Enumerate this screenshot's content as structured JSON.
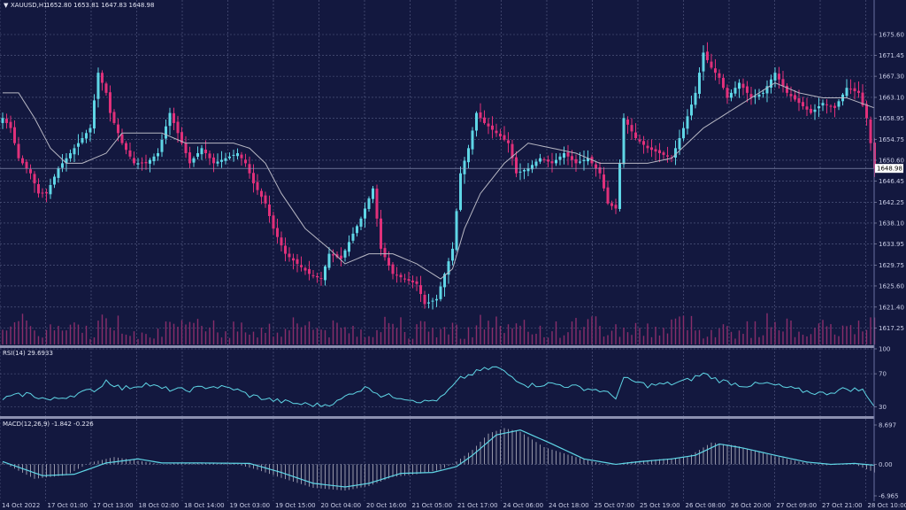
{
  "header": {
    "symbol": "XAUUSD,H1",
    "ohlc": "1652.80 1653.81 1647.83 1648.98"
  },
  "price_tag": "1648.98",
  "rsi_header": "RSI(14) 29.6933",
  "macd_header": "MACD(12,26,9) -1.842 -0.226",
  "colors": {
    "background": "#13183f",
    "bull": "#5fd6e6",
    "bear": "#e0307a",
    "ma": "#b8b8c4",
    "volume": "#8a2e6b",
    "grid": "#5a6088",
    "rsi_line": "#5fd6e6",
    "macd_line": "#5fd6e6",
    "macd_hist": "#b8b8c4"
  },
  "chart_data": [
    {
      "type": "candlestick",
      "name": "price",
      "ylim": [
        1614.5,
        1680.0
      ],
      "y_ticks": [
        "1675.60",
        "1671.45",
        "1667.30",
        "1663.10",
        "1658.95",
        "1654.75",
        "1650.60",
        "1646.45",
        "1642.25",
        "1638.10",
        "1633.95",
        "1629.75",
        "1625.60",
        "1621.40",
        "1617.25"
      ],
      "x_ticks": [
        "14 Oct 2022",
        "17 Oct 01:00",
        "17 Oct 13:00",
        "18 Oct 02:00",
        "18 Oct 14:00",
        "19 Oct 03:00",
        "19 Oct 15:00",
        "20 Oct 04:00",
        "20 Oct 16:00",
        "21 Oct 05:00",
        "21 Oct 17:00",
        "24 Oct 06:00",
        "24 Oct 18:00",
        "25 Oct 07:00",
        "25 Oct 19:00",
        "26 Oct 08:00",
        "26 Oct 20:00",
        "27 Oct 09:00",
        "27 Oct 21:00",
        "28 Oct 10:00"
      ],
      "current_price": 1648.98,
      "close_anchors": [
        [
          0,
          1659
        ],
        [
          2,
          1657
        ],
        [
          4,
          1651
        ],
        [
          7,
          1648
        ],
        [
          9,
          1644
        ],
        [
          11,
          1644
        ],
        [
          14,
          1649
        ],
        [
          17,
          1652
        ],
        [
          20,
          1655
        ],
        [
          22,
          1657
        ],
        [
          24,
          1668
        ],
        [
          26,
          1664
        ],
        [
          27,
          1660
        ],
        [
          30,
          1654
        ],
        [
          33,
          1650
        ],
        [
          36,
          1650
        ],
        [
          39,
          1652
        ],
        [
          42,
          1660
        ],
        [
          45,
          1654
        ],
        [
          47,
          1650
        ],
        [
          50,
          1653
        ],
        [
          53,
          1650
        ],
        [
          56,
          1651
        ],
        [
          59,
          1652
        ],
        [
          61,
          1650
        ],
        [
          63,
          1646
        ],
        [
          66,
          1642
        ],
        [
          68,
          1637
        ],
        [
          71,
          1632
        ],
        [
          74,
          1630
        ],
        [
          77,
          1628
        ],
        [
          80,
          1627
        ],
        [
          82,
          1632
        ],
        [
          85,
          1631
        ],
        [
          88,
          1636
        ],
        [
          90,
          1639
        ],
        [
          93,
          1645
        ],
        [
          95,
          1633
        ],
        [
          98,
          1628
        ],
        [
          101,
          1627
        ],
        [
          104,
          1626
        ],
        [
          106,
          1622
        ],
        [
          109,
          1623
        ],
        [
          111,
          1628
        ],
        [
          113,
          1633
        ],
        [
          115,
          1648
        ],
        [
          117,
          1653
        ],
        [
          119,
          1660
        ],
        [
          121,
          1658
        ],
        [
          124,
          1656
        ],
        [
          127,
          1654
        ],
        [
          129,
          1648
        ],
        [
          132,
          1649
        ],
        [
          135,
          1651
        ],
        [
          138,
          1650
        ],
        [
          141,
          1652
        ],
        [
          144,
          1650
        ],
        [
          147,
          1651
        ],
        [
          150,
          1648
        ],
        [
          152,
          1642
        ],
        [
          154,
          1641
        ],
        [
          156,
          1659
        ],
        [
          159,
          1655
        ],
        [
          162,
          1653
        ],
        [
          165,
          1652
        ],
        [
          168,
          1651
        ],
        [
          171,
          1657
        ],
        [
          174,
          1664
        ],
        [
          176,
          1672
        ],
        [
          178,
          1669
        ],
        [
          180,
          1667
        ],
        [
          182,
          1663
        ],
        [
          185,
          1666
        ],
        [
          188,
          1663
        ],
        [
          191,
          1664
        ],
        [
          194,
          1668
        ],
        [
          197,
          1664
        ],
        [
          200,
          1662
        ],
        [
          203,
          1660
        ],
        [
          206,
          1662
        ],
        [
          209,
          1661
        ],
        [
          212,
          1665
        ],
        [
          215,
          1664
        ],
        [
          217,
          1659
        ],
        [
          219,
          1648.98
        ]
      ],
      "ma_anchors": [
        [
          0,
          1664
        ],
        [
          4,
          1664
        ],
        [
          8,
          1659
        ],
        [
          12,
          1653
        ],
        [
          16,
          1650
        ],
        [
          20,
          1650
        ],
        [
          26,
          1652
        ],
        [
          30,
          1656
        ],
        [
          40,
          1656
        ],
        [
          46,
          1654
        ],
        [
          52,
          1654
        ],
        [
          58,
          1654
        ],
        [
          62,
          1653
        ],
        [
          66,
          1650
        ],
        [
          70,
          1644
        ],
        [
          76,
          1637
        ],
        [
          82,
          1633
        ],
        [
          86,
          1630
        ],
        [
          92,
          1632
        ],
        [
          98,
          1632
        ],
        [
          104,
          1630
        ],
        [
          110,
          1627
        ],
        [
          113,
          1629
        ],
        [
          116,
          1637
        ],
        [
          120,
          1644
        ],
        [
          126,
          1650
        ],
        [
          132,
          1654
        ],
        [
          138,
          1653
        ],
        [
          144,
          1652
        ],
        [
          150,
          1650
        ],
        [
          156,
          1650
        ],
        [
          162,
          1650
        ],
        [
          168,
          1651
        ],
        [
          172,
          1654
        ],
        [
          176,
          1657
        ],
        [
          182,
          1660
        ],
        [
          188,
          1663
        ],
        [
          194,
          1666
        ],
        [
          200,
          1664
        ],
        [
          206,
          1663
        ],
        [
          212,
          1663
        ],
        [
          219,
          1661
        ]
      ],
      "candle_count": 220
    },
    {
      "type": "line",
      "name": "RSI(14)",
      "ylim": [
        20,
        100
      ],
      "y_ticks": [
        "100",
        "70",
        "30"
      ],
      "value": 29.6933,
      "anchors": [
        [
          0,
          40
        ],
        [
          6,
          46
        ],
        [
          12,
          38
        ],
        [
          18,
          45
        ],
        [
          24,
          52
        ],
        [
          26,
          62
        ],
        [
          30,
          52
        ],
        [
          36,
          58
        ],
        [
          40,
          52
        ],
        [
          46,
          50
        ],
        [
          52,
          55
        ],
        [
          58,
          52
        ],
        [
          62,
          44
        ],
        [
          68,
          38
        ],
        [
          74,
          34
        ],
        [
          80,
          32
        ],
        [
          84,
          36
        ],
        [
          88,
          48
        ],
        [
          92,
          54
        ],
        [
          95,
          44
        ],
        [
          100,
          42
        ],
        [
          106,
          36
        ],
        [
          110,
          40
        ],
        [
          115,
          64
        ],
        [
          120,
          74
        ],
        [
          124,
          78
        ],
        [
          128,
          66
        ],
        [
          132,
          56
        ],
        [
          138,
          58
        ],
        [
          144,
          54
        ],
        [
          150,
          50
        ],
        [
          154,
          42
        ],
        [
          156,
          64
        ],
        [
          162,
          56
        ],
        [
          168,
          58
        ],
        [
          172,
          62
        ],
        [
          176,
          70
        ],
        [
          180,
          62
        ],
        [
          186,
          56
        ],
        [
          192,
          58
        ],
        [
          196,
          54
        ],
        [
          200,
          50
        ],
        [
          206,
          46
        ],
        [
          212,
          52
        ],
        [
          216,
          50
        ],
        [
          219,
          30
        ]
      ]
    },
    {
      "type": "bar+line",
      "name": "MACD(12,26,9)",
      "ylim": [
        -6.965,
        8.697
      ],
      "y_ticks": [
        "8.697",
        "0.00",
        "-6.965"
      ],
      "macd": -1.842,
      "signal": -0.226,
      "signal_anchors": [
        [
          0,
          0.6
        ],
        [
          10,
          -2.5
        ],
        [
          18,
          -2.2
        ],
        [
          26,
          0.3
        ],
        [
          34,
          1.2
        ],
        [
          40,
          0.3
        ],
        [
          50,
          0.3
        ],
        [
          62,
          0.2
        ],
        [
          70,
          -1.8
        ],
        [
          78,
          -4.2
        ],
        [
          86,
          -5.0
        ],
        [
          92,
          -4.2
        ],
        [
          100,
          -2.0
        ],
        [
          108,
          -1.8
        ],
        [
          114,
          -0.5
        ],
        [
          118,
          2.0
        ],
        [
          124,
          6.5
        ],
        [
          130,
          7.6
        ],
        [
          138,
          4.5
        ],
        [
          146,
          1.2
        ],
        [
          154,
          0.0
        ],
        [
          160,
          0.6
        ],
        [
          168,
          1.2
        ],
        [
          174,
          2.0
        ],
        [
          180,
          4.5
        ],
        [
          186,
          3.6
        ],
        [
          194,
          2.0
        ],
        [
          202,
          0.5
        ],
        [
          208,
          0.0
        ],
        [
          214,
          0.2
        ],
        [
          219,
          -0.2
        ]
      ],
      "hist_anchors": [
        [
          0,
          0.4
        ],
        [
          8,
          -3.2
        ],
        [
          16,
          -2.4
        ],
        [
          22,
          0.4
        ],
        [
          28,
          1.6
        ],
        [
          34,
          0.8
        ],
        [
          40,
          0.0
        ],
        [
          48,
          0.4
        ],
        [
          58,
          0.2
        ],
        [
          64,
          -1.2
        ],
        [
          70,
          -3.0
        ],
        [
          78,
          -5.2
        ],
        [
          86,
          -5.8
        ],
        [
          92,
          -4.8
        ],
        [
          98,
          -2.8
        ],
        [
          104,
          -2.2
        ],
        [
          110,
          -1.2
        ],
        [
          114,
          0.6
        ],
        [
          118,
          3.2
        ],
        [
          122,
          6.8
        ],
        [
          126,
          8.0
        ],
        [
          130,
          7.2
        ],
        [
          136,
          3.8
        ],
        [
          144,
          1.6
        ],
        [
          152,
          -0.2
        ],
        [
          158,
          0.6
        ],
        [
          166,
          1.2
        ],
        [
          172,
          1.6
        ],
        [
          178,
          4.8
        ],
        [
          184,
          4.2
        ],
        [
          192,
          2.2
        ],
        [
          200,
          0.6
        ],
        [
          206,
          -0.2
        ],
        [
          214,
          0.0
        ],
        [
          219,
          -1.8
        ]
      ]
    }
  ]
}
